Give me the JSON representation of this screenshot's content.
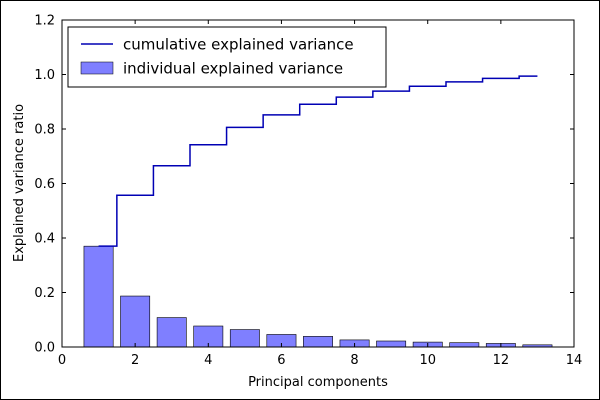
{
  "chart_data": {
    "type": "bar",
    "xlabel": "Principal components",
    "ylabel": "Explained variance ratio",
    "xlim": [
      0,
      14
    ],
    "ylim": [
      0,
      1.2
    ],
    "xticks": [
      "0",
      "2",
      "4",
      "6",
      "8",
      "10",
      "12",
      "14"
    ],
    "yticks": [
      "0.0",
      "0.2",
      "0.4",
      "0.6",
      "0.8",
      "1.0",
      "1.2"
    ],
    "legend_position": "top-left",
    "series": [
      {
        "name": "individual explained variance",
        "type": "bar",
        "color": "#7f7fff",
        "x": [
          1,
          2,
          3,
          4,
          5,
          6,
          7,
          8,
          9,
          10,
          11,
          12,
          13
        ],
        "values": [
          0.37,
          0.187,
          0.108,
          0.077,
          0.064,
          0.046,
          0.039,
          0.026,
          0.022,
          0.018,
          0.016,
          0.013,
          0.008
        ]
      },
      {
        "name": "cumulative explained variance",
        "type": "step",
        "color": "#0000b4",
        "x": [
          1,
          2,
          3,
          4,
          5,
          6,
          7,
          8,
          9,
          10,
          11,
          12,
          13
        ],
        "values": [
          0.37,
          0.557,
          0.665,
          0.742,
          0.806,
          0.852,
          0.891,
          0.917,
          0.939,
          0.957,
          0.973,
          0.986,
          0.994
        ]
      }
    ]
  }
}
